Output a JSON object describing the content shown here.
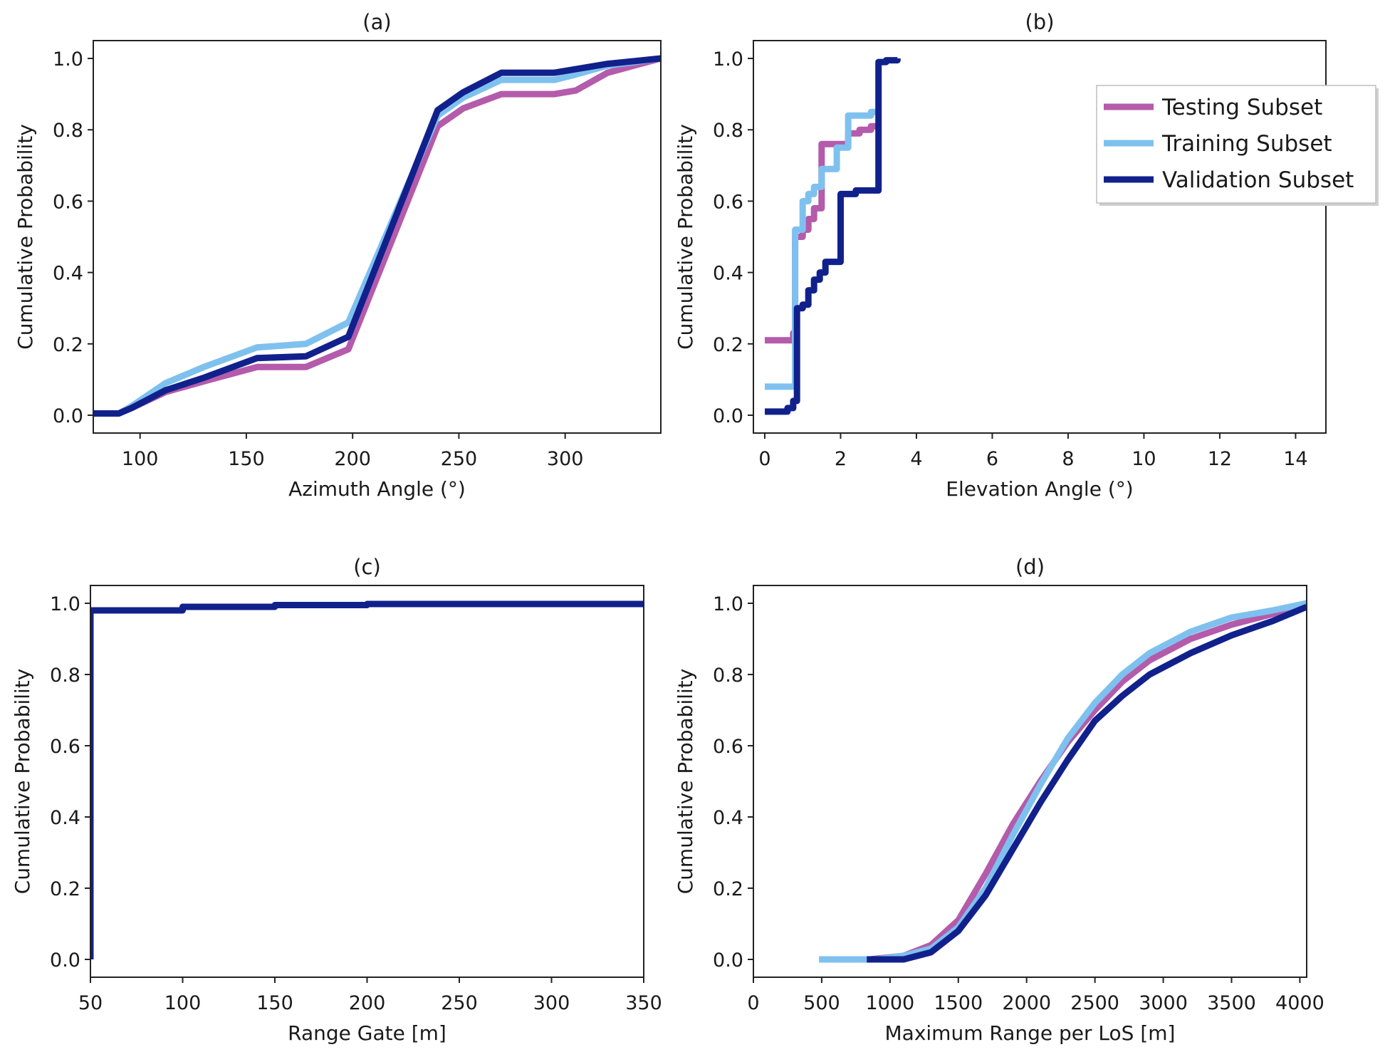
{
  "chart_data": [
    {
      "id": "a",
      "type": "line",
      "title": "(a)",
      "xlabel": "Azimuth Angle (°)",
      "ylabel": "Cumulative Probability",
      "xlim": [
        78,
        345
      ],
      "ylim": [
        -0.05,
        1.05
      ],
      "xticks": [
        100,
        150,
        200,
        250,
        300
      ],
      "xtick_labels": [
        "100",
        "150",
        "200",
        "250",
        "300"
      ],
      "yticks": [
        0,
        0.2,
        0.4,
        0.6,
        0.8,
        1.0
      ],
      "ytick_labels": [
        "0.0",
        "0.2",
        "0.4",
        "0.6",
        "0.8",
        "1.0"
      ],
      "series": [
        {
          "name": "Testing Subset",
          "x": [
            78,
            90,
            96,
            112,
            130,
            155,
            178,
            198,
            240,
            252,
            270,
            295,
            305,
            320,
            345
          ],
          "y": [
            0.005,
            0.005,
            0.02,
            0.065,
            0.095,
            0.135,
            0.135,
            0.185,
            0.81,
            0.86,
            0.9,
            0.9,
            0.91,
            0.96,
            1.0
          ]
        },
        {
          "name": "Training Subset",
          "x": [
            78,
            90,
            96,
            112,
            130,
            155,
            178,
            198,
            240,
            252,
            270,
            295,
            305,
            320,
            345
          ],
          "y": [
            0.005,
            0.005,
            0.025,
            0.09,
            0.135,
            0.19,
            0.2,
            0.26,
            0.84,
            0.89,
            0.94,
            0.94,
            0.955,
            0.98,
            1.0
          ]
        },
        {
          "name": "Validation Subset",
          "x": [
            78,
            90,
            96,
            112,
            130,
            155,
            178,
            198,
            240,
            252,
            270,
            295,
            305,
            320,
            345
          ],
          "y": [
            0.005,
            0.005,
            0.02,
            0.07,
            0.105,
            0.16,
            0.165,
            0.22,
            0.855,
            0.905,
            0.96,
            0.96,
            0.97,
            0.985,
            1.0
          ]
        }
      ]
    },
    {
      "id": "b",
      "type": "line",
      "title": "(b)",
      "xlabel": "Elevation Angle (°)",
      "ylabel": "Cumulative Probability",
      "xlim": [
        -0.3,
        14.8
      ],
      "ylim": [
        -0.05,
        1.05
      ],
      "xticks": [
        0,
        2,
        4,
        6,
        8,
        10,
        12,
        14
      ],
      "xtick_labels": [
        "0",
        "2",
        "4",
        "6",
        "8",
        "10",
        "12",
        "14"
      ],
      "yticks": [
        0,
        0.2,
        0.4,
        0.6,
        0.8,
        1.0
      ],
      "ytick_labels": [
        "0.0",
        "0.2",
        "0.4",
        "0.6",
        "0.8",
        "1.0"
      ],
      "legend": {
        "position": "upper right",
        "entries": [
          "Testing Subset",
          "Training Subset",
          "Validation Subset"
        ]
      },
      "series": [
        {
          "name": "Testing Subset",
          "step": true,
          "x": [
            0,
            0.75,
            0.8,
            1.0,
            1.15,
            1.3,
            1.5,
            1.9,
            2.2,
            2.5,
            2.8,
            3.0
          ],
          "y": [
            0.21,
            0.23,
            0.5,
            0.52,
            0.55,
            0.58,
            0.76,
            0.76,
            0.79,
            0.8,
            0.81,
            0.81
          ]
        },
        {
          "name": "Training Subset",
          "step": true,
          "x": [
            0,
            0.75,
            0.8,
            1.0,
            1.15,
            1.3,
            1.5,
            1.9,
            2.2,
            2.5,
            2.8,
            3.0
          ],
          "y": [
            0.08,
            0.08,
            0.52,
            0.6,
            0.62,
            0.64,
            0.69,
            0.75,
            0.84,
            0.84,
            0.85,
            0.85
          ]
        },
        {
          "name": "Validation Subset",
          "step": true,
          "x": [
            0,
            0.6,
            0.75,
            0.85,
            1.0,
            1.15,
            1.3,
            1.45,
            1.6,
            2.0,
            2.4,
            2.9,
            3.0,
            3.2,
            3.5
          ],
          "y": [
            0.01,
            0.02,
            0.04,
            0.3,
            0.31,
            0.35,
            0.38,
            0.4,
            0.43,
            0.62,
            0.63,
            0.63,
            0.99,
            0.995,
            1.0
          ]
        }
      ]
    },
    {
      "id": "c",
      "type": "line",
      "title": "(c)",
      "xlabel": "Range Gate [m]",
      "ylabel": "Cumulative Probability",
      "xlim": [
        50,
        350
      ],
      "ylim": [
        -0.05,
        1.05
      ],
      "xticks": [
        50,
        100,
        150,
        200,
        250,
        300,
        350
      ],
      "xtick_labels": [
        "50",
        "100",
        "150",
        "200",
        "250",
        "300",
        "350"
      ],
      "yticks": [
        0,
        0.2,
        0.4,
        0.6,
        0.8,
        1.0
      ],
      "ytick_labels": [
        "0.0",
        "0.2",
        "0.4",
        "0.6",
        "0.8",
        "1.0"
      ],
      "series": [
        {
          "name": "Validation Subset",
          "step": true,
          "x": [
            50,
            50,
            100,
            150,
            200,
            350
          ],
          "y": [
            0.0,
            0.98,
            0.99,
            0.995,
            0.998,
            1.0
          ]
        }
      ]
    },
    {
      "id": "d",
      "type": "line",
      "title": "(d)",
      "xlabel": "Maximum Range per LoS [m]",
      "ylabel": "Cumulative Probability",
      "xlim": [
        0,
        4050
      ],
      "ylim": [
        -0.05,
        1.05
      ],
      "xticks": [
        0,
        500,
        1000,
        1500,
        2000,
        2500,
        3000,
        3500,
        4000
      ],
      "xtick_labels": [
        "0",
        "500",
        "1000",
        "1500",
        "2000",
        "2500",
        "3000",
        "3500",
        "4000"
      ],
      "yticks": [
        0,
        0.2,
        0.4,
        0.6,
        0.8,
        1.0
      ],
      "ytick_labels": [
        "0.0",
        "0.2",
        "0.4",
        "0.6",
        "0.8",
        "1.0"
      ],
      "series": [
        {
          "name": "Testing Subset",
          "x": [
            850,
            1100,
            1300,
            1500,
            1700,
            1900,
            2100,
            2300,
            2500,
            2700,
            2900,
            3200,
            3500,
            3800,
            4050
          ],
          "y": [
            0.0,
            0.01,
            0.04,
            0.11,
            0.24,
            0.38,
            0.5,
            0.61,
            0.7,
            0.78,
            0.84,
            0.9,
            0.94,
            0.97,
            1.0
          ]
        },
        {
          "name": "Training Subset",
          "x": [
            480,
            900,
            1100,
            1300,
            1500,
            1700,
            1900,
            2100,
            2300,
            2500,
            2700,
            2900,
            3200,
            3500,
            3800,
            4050
          ],
          "y": [
            0.0,
            0.0,
            0.01,
            0.03,
            0.09,
            0.2,
            0.35,
            0.49,
            0.62,
            0.72,
            0.8,
            0.86,
            0.92,
            0.96,
            0.98,
            1.0
          ]
        },
        {
          "name": "Validation Subset",
          "x": [
            830,
            1100,
            1300,
            1500,
            1700,
            1900,
            2100,
            2300,
            2500,
            2700,
            2900,
            3200,
            3500,
            3800,
            4050
          ],
          "y": [
            0.0,
            0.0,
            0.02,
            0.08,
            0.18,
            0.31,
            0.44,
            0.56,
            0.67,
            0.74,
            0.8,
            0.86,
            0.91,
            0.95,
            0.99
          ]
        }
      ]
    }
  ],
  "colors": {
    "Testing Subset": "#b45bab",
    "Training Subset": "#7fc1ee",
    "Validation Subset": "#11218c",
    "axis": "#222222",
    "text": "#1a1a1a"
  }
}
